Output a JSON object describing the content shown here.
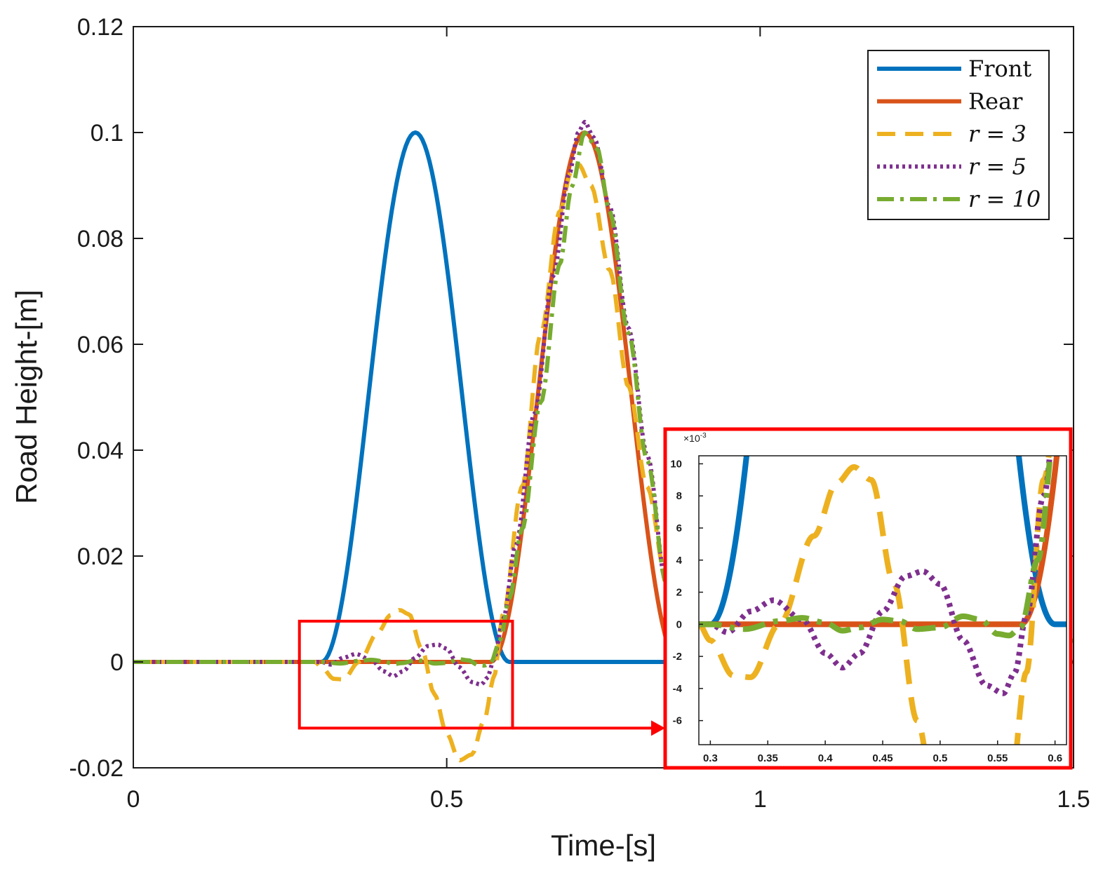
{
  "colors": {
    "front": "#0072BD",
    "rear": "#D95319",
    "r3": "#EDB120",
    "r5": "#7E2F8E",
    "r10": "#77AC30",
    "highlight": "#FF0000"
  },
  "chart_data": [
    {
      "id": "main",
      "type": "line",
      "xlabel": "Time-[s]",
      "ylabel": "Road Height-[m]",
      "xlim": [
        0,
        1.5
      ],
      "ylim": [
        -0.02,
        0.12
      ],
      "xticks": [
        0,
        0.5,
        1,
        1.5
      ],
      "xtick_labels": [
        "0",
        "0.5",
        "1",
        "1.5"
      ],
      "yticks": [
        -0.02,
        0,
        0.02,
        0.04,
        0.06,
        0.08,
        0.1,
        0.12
      ],
      "ytick_labels": [
        "-0.02",
        "0",
        "0.02",
        "0.04",
        "0.06",
        "0.08",
        "0.1",
        "0.12"
      ],
      "legend_position": "top-right",
      "legend": [
        "Front",
        "Rear",
        "r = 3",
        "r = 5",
        "r = 10"
      ],
      "zoom_region": {
        "x": [
          0.265,
          0.605
        ],
        "y": [
          -0.0125,
          0.0077
        ]
      },
      "series": [
        {
          "key": "front",
          "name": "Front",
          "style": "solid",
          "bump": {
            "start": 0.3,
            "end": 0.6,
            "amplitude": 0.1
          }
        },
        {
          "key": "rear",
          "name": "Rear",
          "style": "solid",
          "bump": {
            "start": 0.57,
            "end": 0.87,
            "amplitude": 0.1
          }
        },
        {
          "key": "r3",
          "name": "r = 3",
          "style": "dashed",
          "points": [
            [
              0,
              0
            ],
            [
              0.29,
              0
            ],
            [
              0.3,
              -0.001
            ],
            [
              0.32,
              -0.0032
            ],
            [
              0.335,
              -0.0033
            ],
            [
              0.36,
              0
            ],
            [
              0.39,
              0.0055
            ],
            [
              0.41,
              0.0088
            ],
            [
              0.425,
              0.0098
            ],
            [
              0.44,
              0.009
            ],
            [
              0.46,
              0.0025
            ],
            [
              0.48,
              -0.006
            ],
            [
              0.5,
              -0.0135
            ],
            [
              0.52,
              -0.0186
            ],
            [
              0.54,
              -0.0175
            ],
            [
              0.56,
              -0.011
            ],
            [
              0.575,
              -0.003
            ],
            [
              0.59,
              0.009
            ],
            [
              0.62,
              0.033
            ],
            [
              0.65,
              0.062
            ],
            [
              0.68,
              0.085
            ],
            [
              0.7,
              0.093
            ],
            [
              0.71,
              0.094
            ],
            [
              0.73,
              0.09
            ],
            [
              0.76,
              0.074
            ],
            [
              0.79,
              0.052
            ],
            [
              0.82,
              0.033
            ],
            [
              0.85,
              0.016
            ],
            [
              0.87,
              0.004
            ]
          ]
        },
        {
          "key": "r5",
          "name": "r = 5",
          "style": "dotted",
          "points": [
            [
              0,
              0
            ],
            [
              0.3,
              0
            ],
            [
              0.315,
              -0.0005
            ],
            [
              0.335,
              0.0008
            ],
            [
              0.355,
              0.0015
            ],
            [
              0.38,
              0.0003
            ],
            [
              0.4,
              -0.0018
            ],
            [
              0.415,
              -0.0027
            ],
            [
              0.43,
              -0.0018
            ],
            [
              0.45,
              0.0008
            ],
            [
              0.47,
              0.003
            ],
            [
              0.485,
              0.0033
            ],
            [
              0.5,
              0.0025
            ],
            [
              0.52,
              -0.001
            ],
            [
              0.54,
              -0.0038
            ],
            [
              0.555,
              -0.0043
            ],
            [
              0.565,
              -0.003
            ],
            [
              0.575,
              0.0005
            ],
            [
              0.59,
              0.008
            ],
            [
              0.61,
              0.022
            ],
            [
              0.64,
              0.047
            ],
            [
              0.67,
              0.073
            ],
            [
              0.695,
              0.092
            ],
            [
              0.71,
              0.1
            ],
            [
              0.72,
              0.102
            ],
            [
              0.735,
              0.099
            ],
            [
              0.76,
              0.086
            ],
            [
              0.79,
              0.063
            ],
            [
              0.82,
              0.039
            ],
            [
              0.85,
              0.015
            ],
            [
              0.87,
              0.003
            ]
          ]
        },
        {
          "key": "r10",
          "name": "r = 10",
          "style": "dashdot",
          "points": [
            [
              0,
              0
            ],
            [
              0.3,
              0
            ],
            [
              0.33,
              -0.0003
            ],
            [
              0.36,
              0.0002
            ],
            [
              0.38,
              0.0004
            ],
            [
              0.4,
              0.0001
            ],
            [
              0.415,
              -0.0004
            ],
            [
              0.43,
              -0.0002
            ],
            [
              0.45,
              0.0003
            ],
            [
              0.465,
              0.0002
            ],
            [
              0.48,
              -0.0003
            ],
            [
              0.5,
              -0.0002
            ],
            [
              0.52,
              0.0005
            ],
            [
              0.535,
              0.0003
            ],
            [
              0.55,
              -0.0006
            ],
            [
              0.56,
              -0.0007
            ],
            [
              0.57,
              -0.0002
            ],
            [
              0.585,
              0.004
            ],
            [
              0.6,
              0.012
            ],
            [
              0.62,
              0.025
            ],
            [
              0.65,
              0.049
            ],
            [
              0.68,
              0.075
            ],
            [
              0.7,
              0.09
            ],
            [
              0.72,
              0.1
            ],
            [
              0.74,
              0.097
            ],
            [
              0.76,
              0.085
            ],
            [
              0.79,
              0.062
            ],
            [
              0.82,
              0.038
            ],
            [
              0.85,
              0.015
            ],
            [
              0.87,
              0.004
            ]
          ]
        }
      ]
    },
    {
      "id": "inset",
      "type": "line",
      "xlim": [
        0.29,
        0.61
      ],
      "ylim": [
        -0.0075,
        0.0105
      ],
      "xticks": [
        0.3,
        0.35,
        0.4,
        0.45,
        0.5,
        0.55,
        0.6
      ],
      "xtick_labels": [
        "0.3",
        "0.35",
        "0.4",
        "0.45",
        "0.5",
        "0.55",
        "0.6"
      ],
      "yticks": [
        -6,
        -4,
        -2,
        0,
        2,
        4,
        6,
        8,
        10
      ],
      "ytick_labels": [
        "-6",
        "-4",
        "-2",
        "0",
        "2",
        "4",
        "6",
        "8",
        "10"
      ],
      "exponent_label": "×10",
      "exponent_power": "-3",
      "note": "zoomed view of the region 0.3 s – 0.6 s"
    }
  ]
}
